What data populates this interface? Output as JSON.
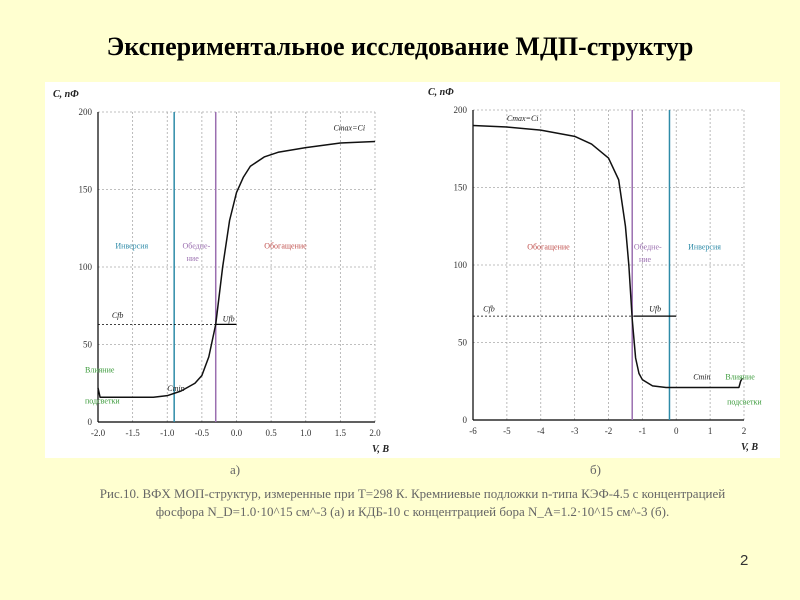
{
  "title": "Экспериментальное исследование МДП-структур",
  "page_number": "2",
  "caption": {
    "label_a": "а)",
    "label_b": "б)",
    "line1": "Рис.10. ВФХ МОП-структур, измеренные при T=298 К. Кремниевые подложки n-типа КЭФ-4.5 с концентрацией",
    "line2": "фосфора N_D=1.0·10^15 см^-3 (а) и КДБ-10 с концентрацией бора N_A=1.2·10^15 см^-3 (б)."
  },
  "chart_data": [
    {
      "type": "line",
      "ylabel": "C, пФ",
      "xlabel": "V, В",
      "xlim": [
        -2,
        2
      ],
      "ylim": [
        0,
        200
      ],
      "grid": true,
      "xticks": [
        "-2.0",
        "-1.5",
        "-1.0",
        "-0.5",
        "0.0",
        "0.5",
        "1.0",
        "1.5",
        "2.0"
      ],
      "yticks": [
        "0",
        "50",
        "100",
        "150",
        "200"
      ],
      "x": [
        -2,
        -1.97,
        -1.5,
        -1.2,
        -1,
        -0.8,
        -0.6,
        -0.5,
        -0.4,
        -0.3,
        -0.2,
        -0.1,
        0,
        0.1,
        0.2,
        0.4,
        0.6,
        1.0,
        1.5,
        2
      ],
      "y": [
        22,
        16,
        16,
        16,
        17,
        20,
        25,
        30,
        42,
        63,
        100,
        130,
        148,
        158,
        165,
        171,
        174,
        177,
        180,
        181
      ],
      "vlines": [
        {
          "x": -0.9,
          "color": "#2E8BA8"
        },
        {
          "x": -0.3,
          "color": "#9B6FB0"
        }
      ],
      "cth": 63,
      "uth_arrow": [
        -0.3,
        0.0
      ],
      "annotations": {
        "cmax": "Cmax=Ci",
        "cmin": "Cmin",
        "cth": "Cfb",
        "uth": "Ufb",
        "inversion": "Инверсия",
        "depletion1": "Обедне-",
        "depletion2": "ние",
        "accumulation": "Обогащение",
        "light1": "Влияние",
        "light2": "подсветки"
      }
    },
    {
      "type": "line",
      "ylabel": "C, пФ",
      "xlabel": "V, В",
      "xlim": [
        -6,
        2
      ],
      "ylim": [
        0,
        200
      ],
      "grid": true,
      "xticks": [
        "-6",
        "-5",
        "-4",
        "-3",
        "-2",
        "-1",
        "0",
        "1",
        "2"
      ],
      "yticks": [
        "0",
        "50",
        "100",
        "150",
        "200"
      ],
      "x": [
        -6,
        -5,
        -4,
        -3,
        -2.5,
        -2,
        -1.7,
        -1.5,
        -1.4,
        -1.3,
        -1.2,
        -1.1,
        -1,
        -0.7,
        -0.3,
        0,
        1,
        1.85,
        1.9,
        1.95
      ],
      "y": [
        190,
        189,
        187,
        183,
        178,
        169,
        155,
        125,
        100,
        65,
        40,
        30,
        26,
        22,
        21,
        21,
        21,
        21,
        25,
        27
      ],
      "vlines": [
        {
          "x": -1.3,
          "color": "#9B6FB0"
        },
        {
          "x": -0.2,
          "color": "#2E8BA8"
        }
      ],
      "cth": 67,
      "uth_arrow": [
        -1.25,
        0.0
      ],
      "annotations": {
        "cmax": "Cmax=Ci",
        "cmin": "Cmin",
        "cth": "Cfb",
        "uth": "Ufb",
        "inversion": "Инверсия",
        "depletion1": "Обедне-",
        "depletion2": "ние",
        "accumulation": "Обогащение",
        "light1": "Влияние",
        "light2": "подсветки"
      }
    }
  ],
  "colors": {
    "inversion": "#2E8BA8",
    "depletion": "#9B6FB0",
    "accumulation": "#C0504D",
    "light": "#3A9A3A"
  }
}
